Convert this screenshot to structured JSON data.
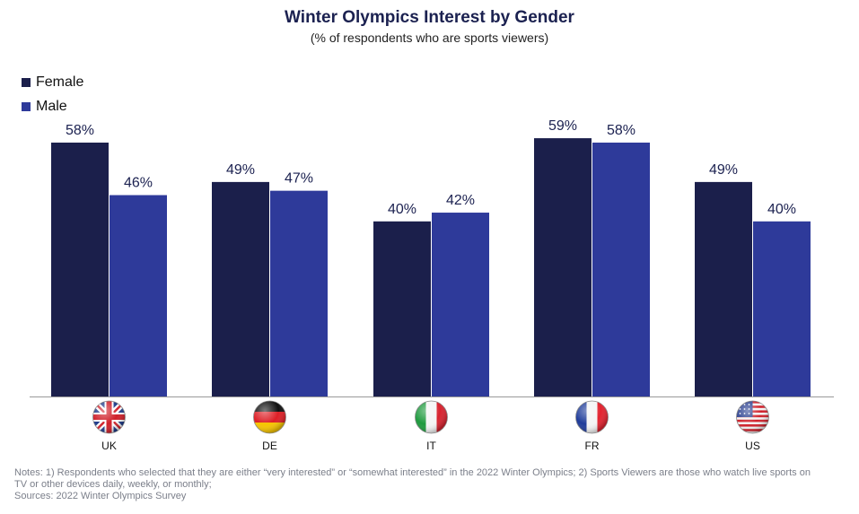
{
  "chart_data": {
    "type": "bar",
    "title": "Winter Olympics Interest by Gender",
    "subtitle": "(% of respondents who are sports viewers)",
    "categories": [
      "UK",
      "DE",
      "IT",
      "FR",
      "US"
    ],
    "category_icons": [
      "uk-flag-icon",
      "germany-flag-icon",
      "italy-flag-icon",
      "france-flag-icon",
      "us-flag-icon"
    ],
    "series": [
      {
        "name": "Female",
        "values": [
          58,
          49,
          40,
          59,
          49
        ],
        "color": "#1b1f4b"
      },
      {
        "name": "Male",
        "values": [
          46,
          47,
          42,
          58,
          40
        ],
        "color": "#2e3a9a"
      }
    ],
    "value_suffix": "%",
    "ylim": [
      0,
      65
    ],
    "grid": false,
    "legend_position": "top-left"
  },
  "notes": {
    "line1": "Notes: 1) Respondents who selected that they are either “very interested” or “somewhat interested” in the 2022 Winter Olympics; 2) Sports Viewers are those who watch live sports on",
    "line2": "TV or other devices daily, weekly, or monthly;",
    "line3": "Sources: 2022 Winter Olympics Survey"
  }
}
